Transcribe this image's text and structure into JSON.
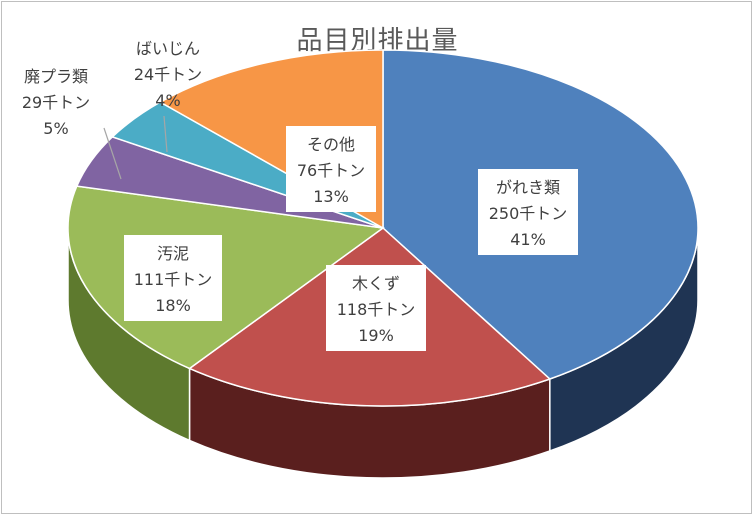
{
  "chart_data": {
    "type": "pie",
    "title": "品目別排出量",
    "unit": "千トン",
    "categories": [
      "がれき類",
      "木くず",
      "汚泥",
      "廃プラ類",
      "ばいじん",
      "その他"
    ],
    "values": [
      250,
      118,
      111,
      29,
      24,
      76
    ],
    "percent_labels": [
      "41%",
      "19%",
      "18%",
      "5%",
      "4%",
      "13%"
    ],
    "value_labels": [
      "250千トン",
      "118千トン",
      "111千トン",
      "29千トン",
      "24千トン",
      "76千トン"
    ],
    "colors": [
      "#4f81bd",
      "#c0504d",
      "#9bbb59",
      "#8064a2",
      "#4bacc6",
      "#f79646"
    ],
    "side_colors": [
      "#1f3453",
      "#5a1f1e",
      "#5e7a2e",
      "#4a3966",
      "#2a7185",
      "#a85f1e"
    ],
    "three_d": true,
    "legend": "none"
  }
}
